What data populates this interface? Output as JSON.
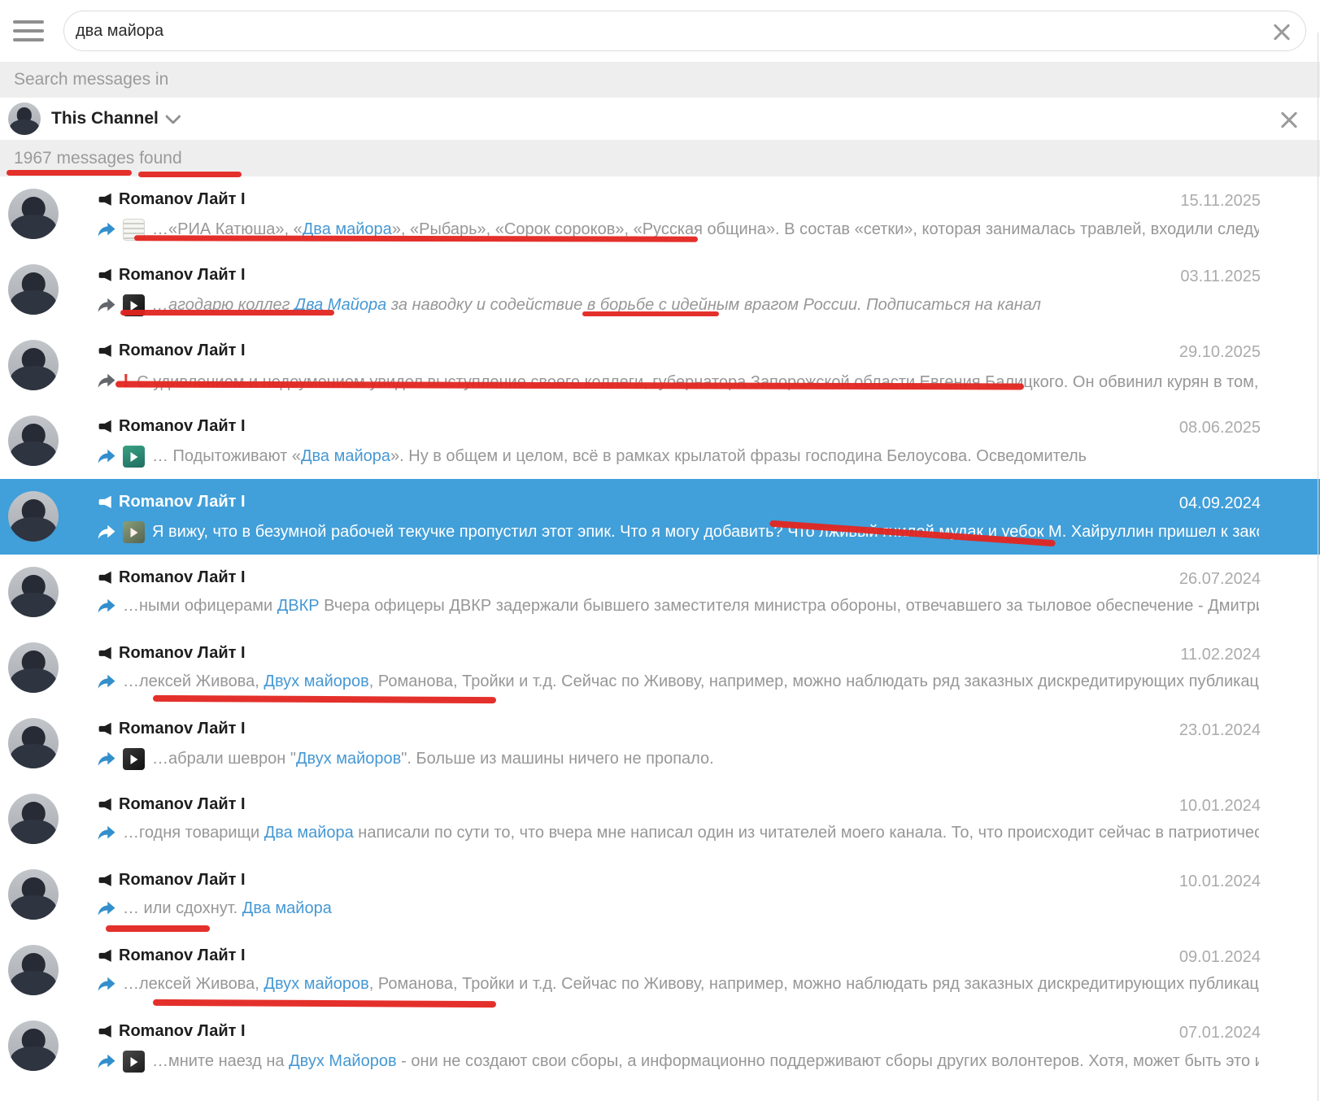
{
  "topbar": {
    "search_value": "два майора"
  },
  "filter_bar": {
    "label": "Search messages in"
  },
  "channel_filter": {
    "name": "This Channel"
  },
  "results_bar": {
    "count_label": "1967 messages found"
  },
  "channel_name": "Romanov Лайт Ɩ",
  "colors": {
    "selected_row_bg": "#419fd9",
    "link_blue": "#4698d3",
    "arrow_blue": "#338fcc",
    "arrow_gray": "#63676b",
    "annotation_red": "#e32520",
    "snippet_gray": "#979797"
  },
  "messages": [
    {
      "date": "15.11.2025",
      "selected": false,
      "arrow": "#338fcc",
      "thumb": "doc",
      "italic": false,
      "segments": [
        {
          "t": "…«РИА Катюша», «"
        },
        {
          "t": "Два майора",
          "link": true
        },
        {
          "t": "», «Рыбарь», «Сорок сороков», «Русская община».   В состав «сетки», которая занималась травлей, входили следующие Teleg…"
        }
      ]
    },
    {
      "date": "03.11.2025",
      "selected": false,
      "arrow": "#63676b",
      "thumb": "video-dark",
      "italic": true,
      "segments": [
        {
          "t": "…агодарю коллег "
        },
        {
          "t": "Два Майора",
          "link": true
        },
        {
          "t": " за наводку и содействие в борьбе с идейным врагом России.  Подписаться на канал"
        }
      ]
    },
    {
      "date": "29.10.2025",
      "selected": false,
      "arrow": "#63676b",
      "thumb": null,
      "italic": false,
      "segments": [
        {
          "t": "!",
          "excl": true
        },
        {
          "t": " С удивлением и недоумением увидел выступление своего коллеги, губернатора Запорожской области Евгения Балицкого. Он обвинил курян в том, что …"
        }
      ]
    },
    {
      "date": "08.06.2025",
      "selected": false,
      "arrow": "#338fcc",
      "thumb": "video-teal",
      "italic": false,
      "segments": [
        {
          "t": "… Подытоживают «"
        },
        {
          "t": "Два майора",
          "link": true
        },
        {
          "t": "».  Ну в общем и целом, всё в рамках крылатой фразы господина Белоусова.  Осведомитель"
        }
      ]
    },
    {
      "date": "04.09.2024",
      "selected": true,
      "arrow": "#ffffff",
      "thumb": "photo",
      "italic": false,
      "segments": [
        {
          "t": "Я вижу, что в безумной рабочей текучке пропустил этот эпик.  Что я могу добавить?  Что лживый гнилой мудак и уебок М. Хайруллин пришел к законом…"
        }
      ]
    },
    {
      "date": "26.07.2024",
      "selected": false,
      "arrow": "#338fcc",
      "thumb": null,
      "italic": false,
      "segments": [
        {
          "t": "…ными офицерами "
        },
        {
          "t": "ДВКР",
          "link": true
        },
        {
          "t": "  Вчера офицеры ДВКР задержали бывшего заместителя министра обороны, отвечавшего за тыловое обеспечение - Дмитрия Булг…"
        }
      ]
    },
    {
      "date": "11.02.2024",
      "selected": false,
      "arrow": "#338fcc",
      "thumb": null,
      "italic": false,
      "segments": [
        {
          "t": "…лексей Живова, "
        },
        {
          "t": "Двух майоров",
          "link": true
        },
        {
          "t": ", Романова, Тройки и т.д. Сейчас по Живову, например, можно наблюдать ряд заказных дискредитирующих публикаций. Но…"
        }
      ]
    },
    {
      "date": "23.01.2024",
      "selected": false,
      "arrow": "#338fcc",
      "thumb": "video-dark",
      "italic": false,
      "segments": [
        {
          "t": "…абрали шеврон \""
        },
        {
          "t": "Двух майоров",
          "link": true
        },
        {
          "t": "\". Больше из машины ничего не пропало."
        }
      ]
    },
    {
      "date": "10.01.2024",
      "selected": false,
      "arrow": "#338fcc",
      "thumb": null,
      "italic": false,
      "segments": [
        {
          "t": "…годня товарищи "
        },
        {
          "t": "Два майора",
          "link": true
        },
        {
          "t": " написали по сути то, что вчера мне написал один из читателей моего канала.   То, что происходит сейчас в патриотическом …"
        }
      ]
    },
    {
      "date": "10.01.2024",
      "selected": false,
      "arrow": "#338fcc",
      "thumb": null,
      "italic": false,
      "segments": [
        {
          "t": "… или сдохнут.  "
        },
        {
          "t": "Два майора",
          "link": true
        }
      ]
    },
    {
      "date": "09.01.2024",
      "selected": false,
      "arrow": "#338fcc",
      "thumb": null,
      "italic": false,
      "segments": [
        {
          "t": "…лексей Живова, "
        },
        {
          "t": "Двух майоров",
          "link": true
        },
        {
          "t": ", Романова, Тройки и т.д. Сейчас по Живову, например, можно наблюдать ряд заказных дискредитирующих публикаций. Но…"
        }
      ]
    },
    {
      "date": "07.01.2024",
      "selected": false,
      "arrow": "#338fcc",
      "thumb": "image-dark",
      "italic": false,
      "segments": [
        {
          "t": "…мните наезд на "
        },
        {
          "t": "Двух Майоров",
          "link": true
        },
        {
          "t": " - они не создают свои сборы, а информационно поддерживают сборы других волонтеров. Хотя, может быть это и не неп…"
        }
      ]
    }
  ]
}
